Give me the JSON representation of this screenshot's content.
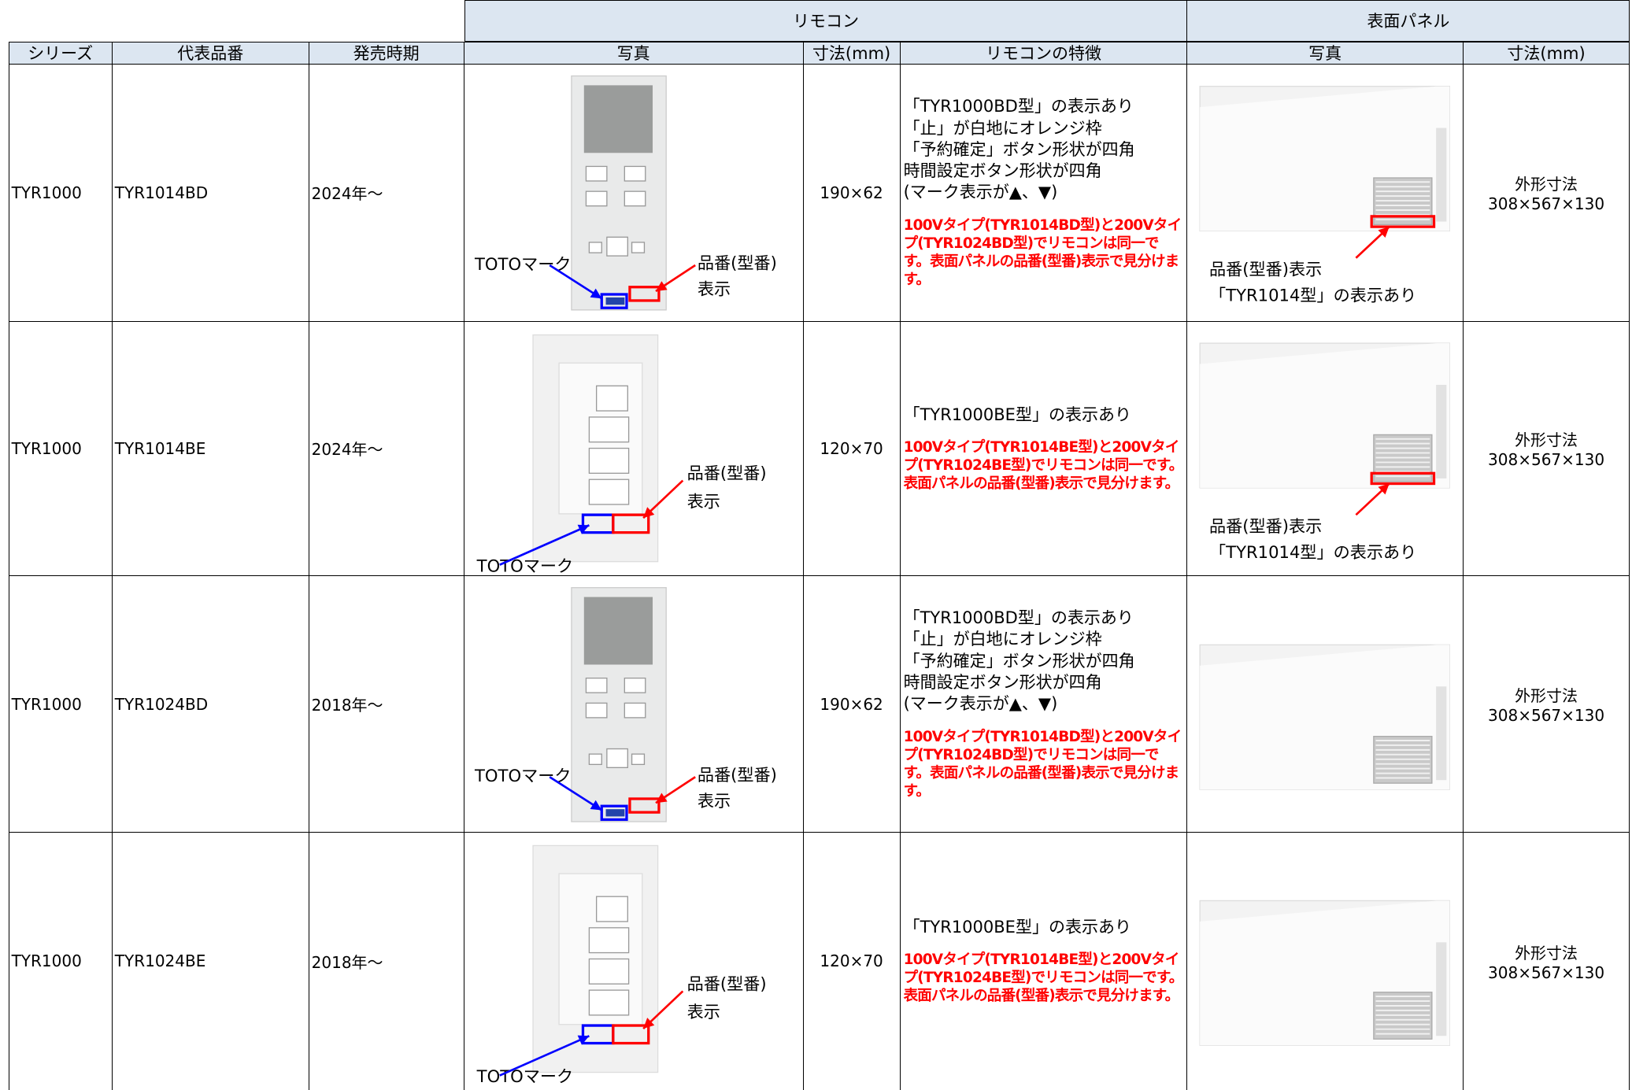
{
  "header": {
    "groups": [
      "リモコン",
      "表面パネル"
    ],
    "columns": [
      "シリーズ",
      "代表品番",
      "発売時期",
      "写真",
      "寸法(mm)",
      "リモコンの特徴",
      "写真",
      "寸法(mm)"
    ]
  },
  "rows": [
    {
      "series": "TYR1000",
      "model": "TYR1014BD",
      "release": "2024年～",
      "remote_photo": {
        "type": "BD",
        "mark_label": "TOTOマーク",
        "model_label": [
          "品番(型番)",
          "表示"
        ]
      },
      "size": "190×62",
      "features": [
        "「TYR1000BD型」の表示あり",
        "「止」が白地にオレンジ枠",
        "「予約確定」ボタン形状が四角",
        "時間設定ボタン形状が四角",
        "(マーク表示が▲、▼)"
      ],
      "note": "100Vタイプ(TYR1014BD型)と200Vタイプ(TYR1024BD型)でリモコンは同一です。表面パネルの品番(型番)表示で見分けます。",
      "panel_photo": {
        "labels": [
          "品番(型番)表示",
          "「TYR1014型」の表示あり"
        ]
      },
      "panel_size": [
        "外形寸法",
        "308×567×130"
      ]
    },
    {
      "series": "TYR1000",
      "model": "TYR1014BE",
      "release": "2024年～",
      "remote_photo": {
        "type": "BE",
        "mark_label": "TOTOマーク",
        "model_label": [
          "品番(型番)",
          "表示"
        ]
      },
      "size": "120×70",
      "features": [
        "「TYR1000BE型」の表示あり"
      ],
      "note": "100Vタイプ(TYR1014BE型)と200Vタイプ(TYR1024BE型)でリモコンは同一です。表面パネルの品番(型番)表示で見分けます。",
      "panel_photo": {
        "labels": [
          "品番(型番)表示",
          "「TYR1014型」の表示あり"
        ]
      },
      "panel_size": [
        "外形寸法",
        "308×567×130"
      ]
    },
    {
      "series": "TYR1000",
      "model": "TYR1024BD",
      "release": "2018年～",
      "remote_photo": {
        "type": "BD",
        "mark_label": "TOTOマーク",
        "model_label": [
          "品番(型番)",
          "表示"
        ]
      },
      "size": "190×62",
      "features": [
        "「TYR1000BD型」の表示あり",
        "「止」が白地にオレンジ枠",
        "「予約確定」ボタン形状が四角",
        "時間設定ボタン形状が四角",
        "(マーク表示が▲、▼)"
      ],
      "note": "100Vタイプ(TYR1014BD型)と200Vタイプ(TYR1024BD型)でリモコンは同一です。表面パネルの品番(型番)表示で見分けます。",
      "panel_photo": {},
      "panel_size": [
        "外形寸法",
        "308×567×130"
      ]
    },
    {
      "series": "TYR1000",
      "model": "TYR1024BE",
      "release": "2018年～",
      "remote_photo": {
        "type": "BE",
        "model_label": [
          "品番(型番)",
          "表示"
        ],
        "mark_label": "TOTOマーク"
      },
      "size": "120×70",
      "features": [
        "「TYR1000BE型」の表示あり"
      ],
      "note": "100Vタイプ(TYR1014BE型)と200Vタイプ(TYR1024BE型)でリモコンは同一です。表面パネルの品番(型番)表示で見分けます。",
      "panel_photo": {},
      "panel_size": [
        "外形寸法",
        "308×567×130"
      ]
    }
  ]
}
